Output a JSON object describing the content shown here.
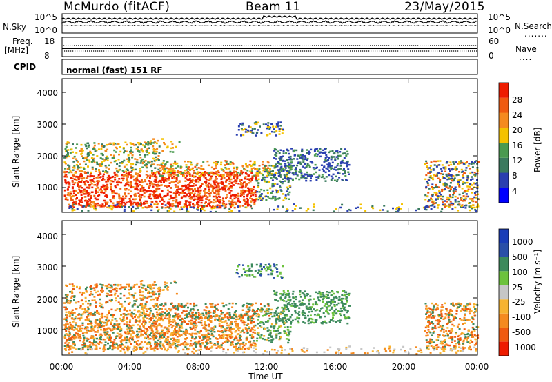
{
  "header": {
    "station": "McMurdo (fitACF)",
    "beam": "Beam 11",
    "date": "23/May/2015"
  },
  "top_panels": {
    "nsky_label": "N.Sky",
    "nsearch_label": "N.Search",
    "nsky_ticks": [
      "10^5",
      "10^0"
    ],
    "nsearch_ticks": [
      "10^5",
      "10^0"
    ],
    "freq_label_line1": "Freq.",
    "freq_label_line2": "[MHz]",
    "freq_ticks": [
      "18",
      "8"
    ],
    "nave_label": "Nave",
    "nave_ticks": [
      "60",
      "0"
    ],
    "cpid_label": "CPID",
    "cpid_text": "normal (fast) 151 RF"
  },
  "colors": {
    "power_scale": [
      "#0000ff",
      "#2a3fb0",
      "#3a7a5e",
      "#4a9a50",
      "#f4c200",
      "#f58a1f",
      "#f05a10",
      "#ee1c00"
    ],
    "velocity_scale": [
      "#ee1c00",
      "#f05a10",
      "#f58a1f",
      "#f7b330",
      "#c6c6c6",
      "#6cc23c",
      "#3c8a5c",
      "#2a4fa8",
      "#1a3db8"
    ]
  },
  "chart_data": [
    {
      "type": "heatmap",
      "name": "power",
      "ylabel": "Slant Range [km]",
      "xlabel": "",
      "ylim": [
        200,
        4500
      ],
      "yticks": [
        "4000",
        "3000",
        "2000",
        "1000"
      ],
      "xticks": [
        "00:00",
        "04:00",
        "08:00",
        "12:00",
        "16:00",
        "20:00",
        "00:00"
      ],
      "colorbar_label": "Power [dB]",
      "colorbar_ticks": [
        "28",
        "24",
        "20",
        "16",
        "12",
        "8",
        "4"
      ]
    },
    {
      "type": "heatmap",
      "name": "velocity",
      "ylabel": "Slant Range [km]",
      "xlabel": "Time UT",
      "ylim": [
        200,
        4500
      ],
      "yticks": [
        "4000",
        "3000",
        "2000",
        "1000"
      ],
      "xticks": [
        "00:00",
        "04:00",
        "08:00",
        "12:00",
        "16:00",
        "20:00",
        "00:00"
      ],
      "colorbar_label": "Velocity [m s⁻¹]",
      "colorbar_ticks": [
        "1000",
        "500",
        "100",
        "25",
        "-25",
        "-100",
        "-500",
        "-1000"
      ]
    }
  ]
}
